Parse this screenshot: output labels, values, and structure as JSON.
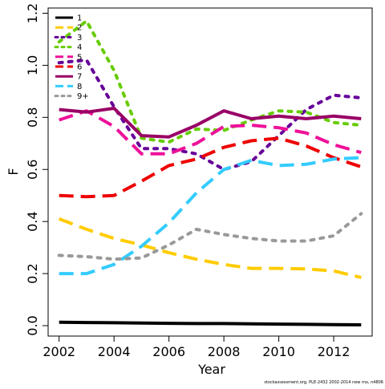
{
  "chart_data": {
    "type": "line",
    "title": "",
    "xlabel": "Year",
    "ylabel": "F",
    "xlim": [
      2001.6,
      2013.4
    ],
    "ylim": [
      -0.04,
      1.22
    ],
    "xticks": [
      2002,
      2004,
      2006,
      2008,
      2010,
      2012
    ],
    "yticks": [
      0.0,
      0.2,
      0.4,
      0.6,
      0.8,
      1.0,
      1.2
    ],
    "ytick_labels": [
      "0.0",
      "0.2",
      "0.4",
      "0.6",
      "0.8",
      "1.0",
      "1.2"
    ],
    "grid": false,
    "legend_position": "top-left",
    "credit": "stockassessment.org, PLE-2432 2002-2014 new mo, n4806",
    "x": [
      2002,
      2003,
      2004,
      2005,
      2006,
      2007,
      2008,
      2009,
      2010,
      2011,
      2012,
      2013
    ],
    "series": [
      {
        "name": "1",
        "color": "#000000",
        "dash": "solid",
        "values": [
          0.013,
          0.012,
          0.011,
          0.01,
          0.009,
          0.008,
          0.008,
          0.007,
          0.006,
          0.005,
          0.004,
          0.003
        ]
      },
      {
        "name": "2",
        "color": "#FFCC00",
        "dash": "long",
        "values": [
          0.41,
          0.37,
          0.335,
          0.31,
          0.28,
          0.255,
          0.235,
          0.22,
          0.22,
          0.218,
          0.21,
          0.185
        ]
      },
      {
        "name": "3",
        "color": "#660099",
        "dash": "dot",
        "values": [
          1.01,
          1.02,
          0.84,
          0.68,
          0.68,
          0.66,
          0.6,
          0.63,
          0.73,
          0.83,
          0.885,
          0.875
        ]
      },
      {
        "name": "4",
        "color": "#66CC00",
        "dash": "dot",
        "values": [
          1.09,
          1.17,
          0.98,
          0.72,
          0.705,
          0.755,
          0.75,
          0.79,
          0.825,
          0.82,
          0.78,
          0.77
        ]
      },
      {
        "name": "5",
        "color": "#EE1199",
        "dash": "long",
        "values": [
          0.79,
          0.825,
          0.765,
          0.66,
          0.66,
          0.7,
          0.765,
          0.77,
          0.76,
          0.74,
          0.695,
          0.665
        ]
      },
      {
        "name": "6",
        "color": "#EE0000",
        "dash": "long",
        "values": [
          0.5,
          0.495,
          0.5,
          0.555,
          0.615,
          0.64,
          0.685,
          0.71,
          0.72,
          0.69,
          0.645,
          0.61
        ]
      },
      {
        "name": "7",
        "color": "#990066",
        "dash": "solid",
        "values": [
          0.83,
          0.82,
          0.835,
          0.73,
          0.725,
          0.77,
          0.825,
          0.795,
          0.805,
          0.795,
          0.805,
          0.795
        ]
      },
      {
        "name": "8",
        "color": "#33CCFF",
        "dash": "long",
        "values": [
          0.2,
          0.2,
          0.235,
          0.305,
          0.395,
          0.51,
          0.6,
          0.635,
          0.615,
          0.62,
          0.64,
          0.645
        ]
      },
      {
        "name": "9+",
        "color": "#999999",
        "dash": "dot",
        "values": [
          0.27,
          0.265,
          0.255,
          0.26,
          0.31,
          0.37,
          0.35,
          0.335,
          0.325,
          0.325,
          0.345,
          0.43
        ]
      }
    ]
  }
}
